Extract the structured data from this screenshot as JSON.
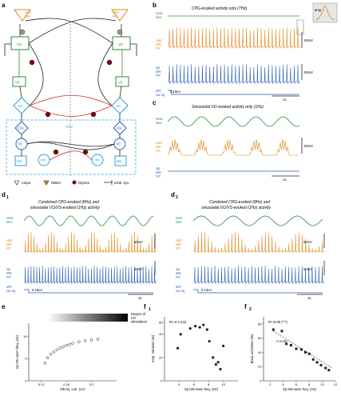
{
  "panels": {
    "a": {
      "letter": "a",
      "vestib_l": "Vestib",
      "vestib_r": "Vestib",
      "vo_l": "VO",
      "vo_r": "VO",
      "vs_l": "VS",
      "vs_r": "VS",
      "ec_l": "EC",
      "ec_r": "EC",
      "v2a_l": "V2a",
      "v2a_r": "V2a",
      "v0_l": "V0",
      "v0_r": "V0",
      "dmn_l": "dIN",
      "dmn_r": "dIN",
      "cin_l": "cIN",
      "cin_r": "cIN",
      "cpg": "CPG",
      "abd_l": "Abd\nMN",
      "abd_r": "Abd\nMN",
      "legend": [
        {
          "sym": "triangle",
          "label": "Ampa"
        },
        {
          "sym": "tri-orange",
          "label": "NMDA"
        },
        {
          "sym": "dot",
          "label": "Glycine"
        },
        {
          "sym": "bar",
          "label": "Inhib. syn."
        }
      ]
    },
    "b": {
      "letter": "b",
      "title": "CPG-evoked activity only (7Hz)",
      "vest": "Vest.\nsine",
      "abd": "Abd\nMN\nrec",
      "sp": "Sp\nMN\nrec",
      "dim": "dIN\ncur.inj.",
      "scale_v": "50mV",
      "scale_v2": "50mV",
      "scale_i": "0.16nA",
      "scale_t": "1s",
      "inset_amp": "amp"
    },
    "c": {
      "letter": "c",
      "title": "Sinusoidal VO evoked activity only (1Hz)",
      "vest": "Vest.\nsine",
      "abd": "Abd\nMN\nrec",
      "sp": "Sp\nMN\nrec",
      "scale_v": "50mV",
      "scale_t": "1s"
    },
    "d1": {
      "letter": "d",
      "sub": "1",
      "title1": "Combined CPG-evoked (8Hz) and",
      "title2": "sinusoidal VO/VS-evoked (1Hz) activity",
      "vest": "Vest.\nsine",
      "abd": "Abd\nMN\nrec",
      "sp": "Sp\nMN\nrec",
      "dim": "dIN\ncur.inj.",
      "scale_v": "50mV",
      "scale_v2": "50mV",
      "scale_i": "0.16nA",
      "scale_t": "1s"
    },
    "d2": {
      "letter": "d",
      "sub": "2",
      "title1": "Combined CPG-evoked (8Hz) and",
      "title2": "sinusoidal VO/VS-evoked (1Hz) activity",
      "vest": "Vest.\nsine",
      "abd": "Abd\nMN\nrec",
      "sp": "Sp\nMN\nrec",
      "dim": "dIN\ncur.inj.",
      "scale_v": "50mV",
      "scale_v2": "50mV",
      "scale_i": "0.13nA",
      "scale_t": "1s"
    },
    "e": {
      "letter": "e",
      "grad_label": "Degree of\nVO\nstimulation",
      "xlabel": "dIN inj. curr. (nA)",
      "ylabel": "Sp MN swim freq. (Hz)"
    },
    "f1": {
      "letter": "f",
      "sub": "1",
      "stat": "R²=0.4 (ns)",
      "xlabel": "Sp MN swim freq. (Hz)",
      "ylabel": "Amp. variation (%)"
    },
    "f2": {
      "letter": "f",
      "sub": "2",
      "stat": "R²=0.08 (***)",
      "fit": "r²=0.69",
      "xlabel": "Sp MN swim freq. (Hz)",
      "ylabel": "Basic activation (%)"
    }
  },
  "chart_data": [
    {
      "type": "scatter",
      "panel": "e",
      "xlabel": "dIN inj. curr. (nA)",
      "ylabel": "Sp MN swim freq. (Hz)",
      "xticks": [
        "0.12",
        "0.16",
        "0.2"
      ],
      "yticks": [
        "0",
        "5",
        "10"
      ],
      "xlim": [
        0.1,
        0.24
      ],
      "ylim": [
        0,
        13
      ],
      "x": [
        0.126,
        0.13,
        0.135,
        0.14,
        0.145,
        0.15,
        0.155,
        0.16,
        0.165,
        0.17,
        0.18,
        0.19,
        0.2,
        0.21
      ],
      "y": [
        4.0,
        5.2,
        6.0,
        6.5,
        7.0,
        7.4,
        7.7,
        8.0,
        8.2,
        8.5,
        8.8,
        9.0,
        9.2,
        9.4
      ]
    },
    {
      "type": "scatter",
      "panel": "f1",
      "xlabel": "Sp MN swim freq. (Hz)",
      "ylabel": "Amp. variation (%)",
      "xticks": [
        "4",
        "6",
        "8",
        "10"
      ],
      "yticks": [
        "0",
        "20",
        "40",
        "50"
      ],
      "xlim": [
        2,
        12
      ],
      "ylim": [
        0,
        55
      ],
      "x": [
        3.8,
        4.2,
        5.5,
        6.2,
        6.8,
        7.3,
        7.8,
        8.1,
        8.6,
        9.0,
        9.3,
        9.6,
        10.0
      ],
      "y": [
        28,
        40,
        45,
        47,
        46,
        48,
        44,
        34,
        20,
        14,
        16,
        10,
        30
      ]
    },
    {
      "type": "scatter",
      "panel": "f2",
      "xlabel": "Sp MN swim freq. (Hz)",
      "ylabel": "Basic activation (%)",
      "xticks": [
        "2",
        "4",
        "6",
        "8",
        "10",
        "12"
      ],
      "yticks": [
        "0",
        "20",
        "40",
        "60",
        "80"
      ],
      "xlim": [
        1,
        12
      ],
      "ylim": [
        0,
        90
      ],
      "x": [
        2.5,
        3.8,
        4.5,
        5.2,
        6.0,
        6.8,
        7.4,
        8.0,
        8.6,
        9.2,
        9.8,
        10.5,
        11.0
      ],
      "y": [
        72,
        70,
        52,
        50,
        45,
        44,
        40,
        38,
        30,
        26,
        22,
        18,
        15
      ],
      "fit_line": [
        [
          2.5,
          70
        ],
        [
          11.5,
          18
        ]
      ]
    }
  ]
}
